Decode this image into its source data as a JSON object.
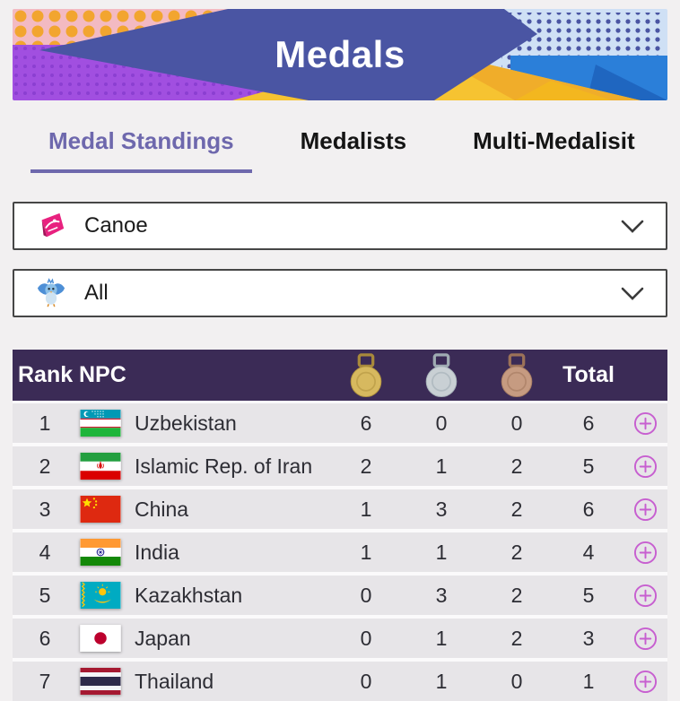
{
  "banner": {
    "title": "Medals"
  },
  "tabs": [
    {
      "label": "Medal Standings",
      "active": true
    },
    {
      "label": "Medalists",
      "active": false
    },
    {
      "label": "Multi-Medalisit",
      "active": false
    }
  ],
  "filters": {
    "sport": {
      "value": "Canoe",
      "icon": "canoe-pictogram-icon"
    },
    "category": {
      "value": "All",
      "icon": "mascot-bird-icon"
    }
  },
  "table": {
    "header": {
      "rank": "Rank",
      "npc": "NPC",
      "total": "Total",
      "medal_icons": [
        "gold-medal-icon",
        "silver-medal-icon",
        "bronze-medal-icon"
      ]
    },
    "rows": [
      {
        "rank": "1",
        "npc": "Uzbekistan",
        "flag": "uz",
        "gold": "6",
        "silver": "0",
        "bronze": "0",
        "total": "6"
      },
      {
        "rank": "2",
        "npc": "Islamic Rep. of Iran",
        "flag": "ir",
        "gold": "2",
        "silver": "1",
        "bronze": "2",
        "total": "5"
      },
      {
        "rank": "3",
        "npc": "China",
        "flag": "cn",
        "gold": "1",
        "silver": "3",
        "bronze": "2",
        "total": "6"
      },
      {
        "rank": "4",
        "npc": "India",
        "flag": "in",
        "gold": "1",
        "silver": "1",
        "bronze": "2",
        "total": "4"
      },
      {
        "rank": "5",
        "npc": "Kazakhstan",
        "flag": "kz",
        "gold": "0",
        "silver": "3",
        "bronze": "2",
        "total": "5"
      },
      {
        "rank": "6",
        "npc": "Japan",
        "flag": "jp",
        "gold": "0",
        "silver": "1",
        "bronze": "2",
        "total": "3"
      },
      {
        "rank": "7",
        "npc": "Thailand",
        "flag": "th",
        "gold": "0",
        "silver": "1",
        "bronze": "0",
        "total": "1"
      }
    ]
  },
  "colors": {
    "accent_purple": "#6e68ad",
    "table_header_bg": "#3b2b56",
    "row_bg": "#e7e5e8",
    "plus_icon": "#c75fd0",
    "banner_indigo": "#4a55a3",
    "banner_yellow": "#f6c331"
  }
}
